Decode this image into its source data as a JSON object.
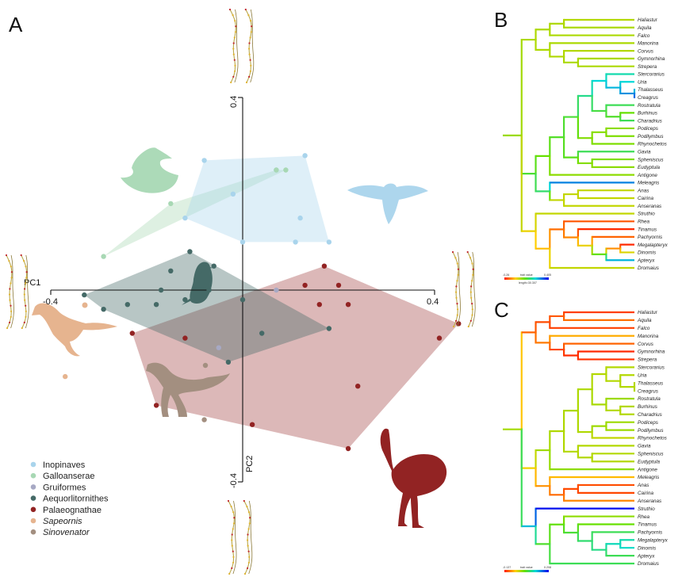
{
  "figure": {
    "panel_labels": [
      "A",
      "B",
      "C"
    ]
  },
  "colors": {
    "Inopinaves": "#a9d4ec",
    "Galloanserae": "#a8d8b4",
    "Gruiformes": "#a7a9c4",
    "Aequorlitornithes": "#456a67",
    "Palaeognathae": "#922323",
    "Sapeornis": "#e6b48f",
    "Sinovenator": "#a38f80"
  },
  "icons": [
    "duck-silhouette-icon",
    "eagle-silhouette-icon",
    "penguin-silhouette-icon",
    "sapeornis-silhouette-icon",
    "sinovenator-silhouette-icon",
    "ostrich-silhouette-icon",
    "landmark-outline-icon"
  ],
  "chart_data": [
    {
      "type": "scatter",
      "panel": "A",
      "title": "",
      "xlabel": "PC1",
      "ylabel": "PC2",
      "xlim": [
        -0.45,
        0.45
      ],
      "ylim": [
        -0.42,
        0.42
      ],
      "x_ticks": [
        "-0.4",
        "0.4"
      ],
      "y_ticks": [
        "0.4",
        "-0.4"
      ],
      "grid": false,
      "legend_position": "bottom-left",
      "legend": [
        {
          "label": "Inopinaves",
          "color": "#a9d4ec",
          "italic": false
        },
        {
          "label": "Galloanserae",
          "color": "#a8d8b4",
          "italic": false
        },
        {
          "label": "Gruiformes",
          "color": "#a7a9c4",
          "italic": false
        },
        {
          "label": "Aequorlitornithes",
          "color": "#456a67",
          "italic": false
        },
        {
          "label": "Palaeognathae",
          "color": "#922323",
          "italic": false
        },
        {
          "label": "Sapeornis",
          "color": "#e6b48f",
          "italic": true
        },
        {
          "label": "Sinovenator",
          "color": "#a38f80",
          "italic": true
        }
      ],
      "series": [
        {
          "name": "Inopinaves",
          "hull": true,
          "points": [
            [
              -0.08,
              0.27
            ],
            [
              0.13,
              0.28
            ],
            [
              0.07,
              0.25
            ],
            [
              -0.02,
              0.2
            ],
            [
              0.12,
              0.15
            ],
            [
              0.18,
              0.1
            ],
            [
              0.11,
              0.1
            ],
            [
              -0.12,
              0.15
            ],
            [
              0.0,
              0.1
            ]
          ]
        },
        {
          "name": "Galloanserae",
          "hull": true,
          "points": [
            [
              -0.15,
              0.18
            ],
            [
              0.07,
              0.25
            ],
            [
              0.09,
              0.25
            ],
            [
              -0.29,
              0.07
            ]
          ]
        },
        {
          "name": "Gruiformes",
          "hull": false,
          "points": [
            [
              0.07,
              0.0
            ],
            [
              -0.05,
              -0.12
            ]
          ]
        },
        {
          "name": "Aequorlitornithes",
          "hull": true,
          "points": [
            [
              -0.11,
              0.08
            ],
            [
              -0.06,
              0.05
            ],
            [
              -0.09,
              0.04
            ],
            [
              -0.07,
              0.0
            ],
            [
              -0.17,
              0.0
            ],
            [
              -0.12,
              -0.02
            ],
            [
              -0.33,
              -0.01
            ],
            [
              -0.29,
              -0.04
            ],
            [
              -0.24,
              -0.03
            ],
            [
              -0.18,
              -0.03
            ],
            [
              0.0,
              -0.02
            ],
            [
              -0.15,
              0.04
            ],
            [
              0.04,
              -0.09
            ],
            [
              0.18,
              -0.08
            ],
            [
              -0.03,
              -0.15
            ]
          ]
        },
        {
          "name": "Palaeognathae",
          "hull": true,
          "points": [
            [
              0.17,
              0.05
            ],
            [
              0.13,
              0.01
            ],
            [
              0.2,
              0.01
            ],
            [
              0.22,
              -0.03
            ],
            [
              0.16,
              -0.03
            ],
            [
              0.45,
              -0.07
            ],
            [
              0.41,
              -0.1
            ],
            [
              -0.23,
              -0.09
            ],
            [
              -0.12,
              -0.1
            ],
            [
              0.24,
              -0.2
            ],
            [
              -0.18,
              -0.24
            ],
            [
              0.02,
              -0.28
            ],
            [
              0.22,
              -0.33
            ]
          ]
        },
        {
          "name": "Sapeornis",
          "hull": false,
          "points": [
            [
              -0.37,
              -0.18
            ]
          ]
        },
        {
          "name": "Sinovenator",
          "hull": false,
          "points": [
            [
              -0.08,
              -0.27
            ]
          ]
        }
      ]
    },
    {
      "type": "table",
      "panel": "B",
      "title": "",
      "scale": {
        "min_label": "-0.26",
        "mid_label": "trait value",
        "max_label": "0.405",
        "length_label": "length=30.307"
      },
      "taxa": [
        "Haliastur",
        "Aquila",
        "Falco",
        "Manorina",
        "Corvus",
        "Gymnorhina",
        "Strepera",
        "Stercorarius",
        "Uria",
        "Thalasseus",
        "Creagrus",
        "Rostratula",
        "Burhinus",
        "Charadrius",
        "Podiceps",
        "Podilymbus",
        "Rhynochetos",
        "Gavia",
        "Spheniscus",
        "Eudyptula",
        "Antigone",
        "Meleagris",
        "Anas",
        "Cairina",
        "Anseranas",
        "Struthio",
        "Rhea",
        "Tinamus",
        "Pachyornis",
        "Megalapteryx",
        "Dinornis",
        "Apteryx",
        "Dromaius"
      ],
      "tip_values": [
        0.35,
        0.36,
        0.36,
        0.36,
        0.35,
        0.36,
        0.36,
        0.65,
        0.7,
        0.7,
        0.9,
        0.55,
        0.45,
        0.55,
        0.4,
        0.42,
        0.42,
        0.55,
        0.42,
        0.4,
        0.4,
        0.82,
        0.33,
        0.33,
        0.33,
        0.33,
        0.08,
        0.02,
        0.1,
        0.02,
        0.3,
        0.75,
        0.33
      ]
    },
    {
      "type": "table",
      "panel": "C",
      "title": "",
      "scale": {
        "min_label": "-0.137",
        "mid_label": "trait value",
        "max_label": "0.208",
        "length_label": ""
      },
      "taxa": [
        "Haliastur",
        "Aquila",
        "Falco",
        "Manorina",
        "Corvus",
        "Gymnorhina",
        "Strepera",
        "Stercorarius",
        "Uria",
        "Thalasseus",
        "Creagrus",
        "Rostratula",
        "Burhinus",
        "Charadrius",
        "Podiceps",
        "Podilymbus",
        "Rhynochetos",
        "Gavia",
        "Spheniscus",
        "Eudyptula",
        "Antigone",
        "Meleagris",
        "Anas",
        "Cairina",
        "Anseranas",
        "Struthio",
        "Rhea",
        "Tinamus",
        "Pachyornis",
        "Megalapteryx",
        "Dinornis",
        "Apteryx",
        "Dromaius"
      ],
      "tip_values": [
        0.05,
        0.12,
        0.05,
        0.2,
        0.1,
        0.02,
        0.03,
        0.35,
        0.35,
        0.35,
        0.35,
        0.38,
        0.35,
        0.35,
        0.38,
        0.38,
        0.33,
        0.35,
        0.35,
        0.35,
        0.4,
        0.22,
        0.07,
        0.06,
        0.15,
        0.98,
        0.4,
        0.45,
        0.55,
        0.65,
        0.68,
        0.55,
        0.55
      ]
    }
  ]
}
